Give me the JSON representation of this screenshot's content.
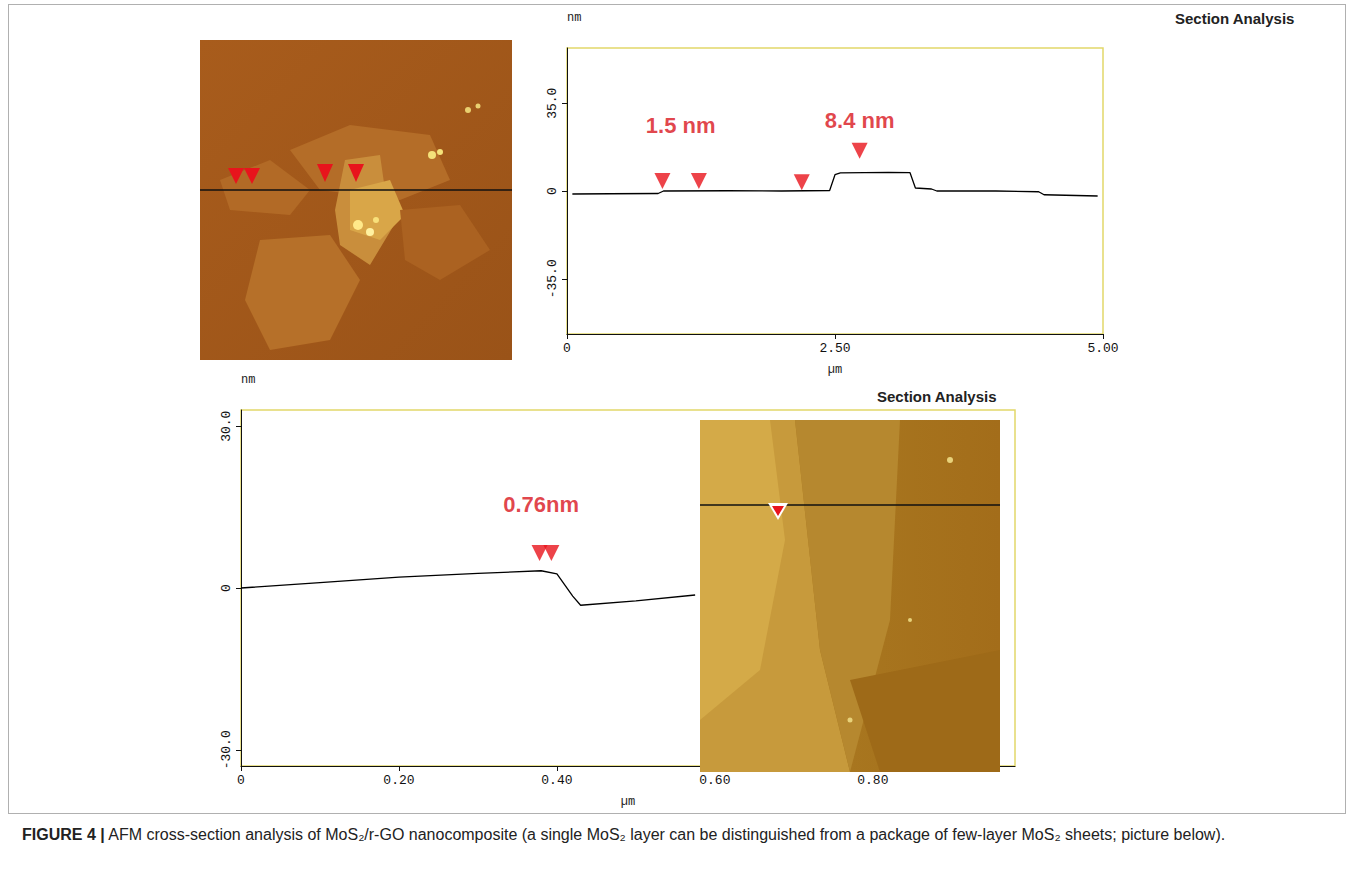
{
  "caption": {
    "label": "FIGURE 4 |",
    "text": "AFM cross-section analysis of MoS₂/r-GO nanocomposite (a single MoS₂ layer can be distinguished from a package of few-layer MoS₂ sheets; picture below)."
  },
  "chart_data": [
    {
      "type": "line",
      "title": "Section Analysis",
      "y_label": "nm",
      "x_label": "µm",
      "color": "#000000",
      "grid": false,
      "x": [
        0.05,
        0.4,
        0.85,
        0.9,
        1.5,
        2.0,
        2.45,
        2.5,
        2.55,
        3.0,
        3.2,
        3.25,
        3.4,
        3.45,
        4.0,
        4.4,
        4.45,
        4.95
      ],
      "values": [
        -1.2,
        -1.1,
        -1.0,
        0.0,
        0.1,
        0.0,
        0.2,
        6.5,
        7.2,
        7.4,
        7.3,
        1.2,
        0.8,
        0.0,
        0.0,
        -0.3,
        -1.5,
        -2.0
      ],
      "xlim": [
        0,
        5.0
      ],
      "xticks": [
        0,
        {
          "value": 2.5,
          "label": "2.50"
        },
        {
          "value": 5,
          "label": "5.00"
        }
      ],
      "ylim": [
        -57,
        57
      ],
      "yticks": [
        {
          "value": -35,
          "label": "-35.0"
        },
        0,
        {
          "value": 35,
          "label": "35.0"
        }
      ],
      "cursors": {
        "x": [
          0.89,
          1.23,
          2.19,
          2.73
        ],
        "y": [
          4,
          4,
          3.5,
          16
        ],
        "marker": "triangle",
        "color": "#e8141c"
      },
      "annotations": [
        {
          "text": "1.5 nm",
          "x": 1.06,
          "y": 26
        },
        {
          "text": "8.4 nm",
          "x": 2.73,
          "y": 28
        }
      ]
    },
    {
      "type": "line",
      "title": "Section Analysis",
      "y_label": "nm",
      "x_label": "µm",
      "color": "#000000",
      "grid": false,
      "x": [
        0,
        0.1,
        0.2,
        0.3,
        0.38,
        0.4,
        0.42,
        0.43,
        0.5,
        0.575
      ],
      "values": [
        0,
        1.0,
        2.0,
        2.7,
        3.2,
        2.6,
        -1.5,
        -3.2,
        -2.4,
        -1.3
      ],
      "xlim": [
        0,
        0.98
      ],
      "xticks": [
        0,
        {
          "value": 0.2,
          "label": "0.20"
        },
        {
          "value": 0.4,
          "label": "0.40"
        },
        {
          "value": 0.6,
          "label": "0.60"
        },
        {
          "value": 0.8,
          "label": "0.80"
        }
      ],
      "ylim": [
        -33,
        33
      ],
      "yticks": [
        {
          "value": -30,
          "label": "-30.0"
        },
        0,
        {
          "value": 30,
          "label": "30.0"
        }
      ],
      "cursors": {
        "x": [
          0.378,
          0.393
        ],
        "y": [
          6.5,
          6.5
        ],
        "marker": "triangle",
        "color": "#e8141c"
      },
      "annotations": [
        {
          "text": "0.76nm",
          "x": 0.38,
          "y": 15.4
        }
      ]
    }
  ]
}
